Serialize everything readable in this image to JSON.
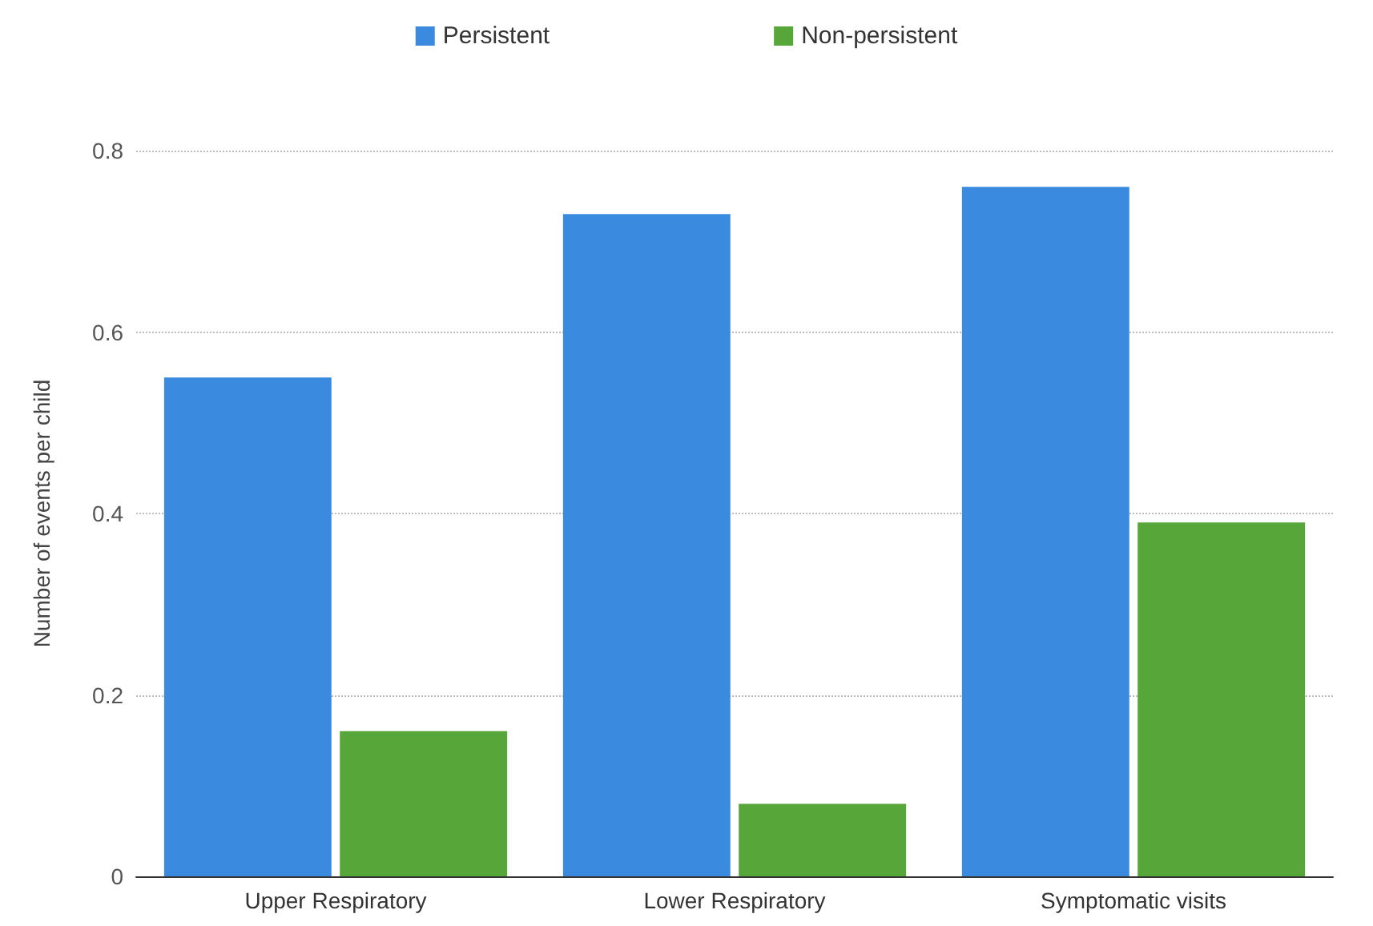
{
  "chart_data": {
    "type": "bar",
    "ylabel": "Number of events per child",
    "categories": [
      "Upper Respiratory",
      "Lower Respiratory",
      "Symptomatic visits"
    ],
    "series": [
      {
        "name": "Persistent",
        "color": "#3a8be0",
        "values": [
          0.55,
          0.73,
          0.76
        ]
      },
      {
        "name": "Non-persistent",
        "color": "#56a63a",
        "values": [
          0.16,
          0.08,
          0.39
        ]
      }
    ],
    "ylim": [
      0,
      0.8
    ],
    "yticks": [
      0,
      0.2,
      0.4,
      0.6,
      0.8
    ],
    "grid": "y",
    "legend": "top"
  }
}
